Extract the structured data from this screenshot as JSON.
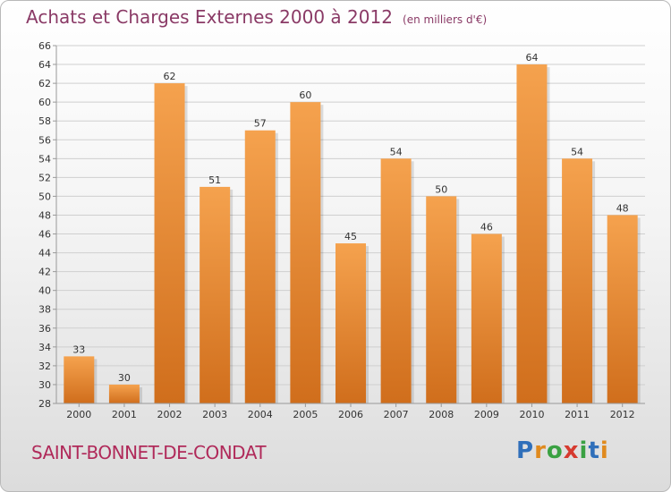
{
  "title": "Achats et Charges Externes 2000 à 2012",
  "unit": "(en milliers d'€)",
  "commune": "SAINT-BONNET-DE-CONDAT",
  "logo": {
    "text": "Proxiti",
    "letters": [
      "P",
      "r",
      "o",
      "x",
      "i",
      "t",
      "i"
    ],
    "colors": [
      "#2f6fba",
      "#e08a1e",
      "#3aa142",
      "#d63a2f",
      "#3aa142",
      "#2f6fba",
      "#e08a1e"
    ]
  },
  "colors": {
    "bar_light": "#f5a24e",
    "bar_dark": "#d06e1c",
    "grid": "#cfcfcf",
    "text": "#333333"
  },
  "chart_data": {
    "type": "bar",
    "categories": [
      "2000",
      "2001",
      "2002",
      "2003",
      "2004",
      "2005",
      "2006",
      "2007",
      "2008",
      "2009",
      "2010",
      "2011",
      "2012"
    ],
    "values": [
      33,
      30,
      62,
      51,
      57,
      60,
      45,
      54,
      50,
      46,
      64,
      54,
      48
    ],
    "ylim": [
      28,
      66
    ],
    "yticks": [
      28,
      30,
      32,
      34,
      36,
      38,
      40,
      42,
      44,
      46,
      48,
      50,
      52,
      54,
      56,
      58,
      60,
      62,
      64,
      66
    ],
    "grid": true,
    "data_labels": true
  }
}
